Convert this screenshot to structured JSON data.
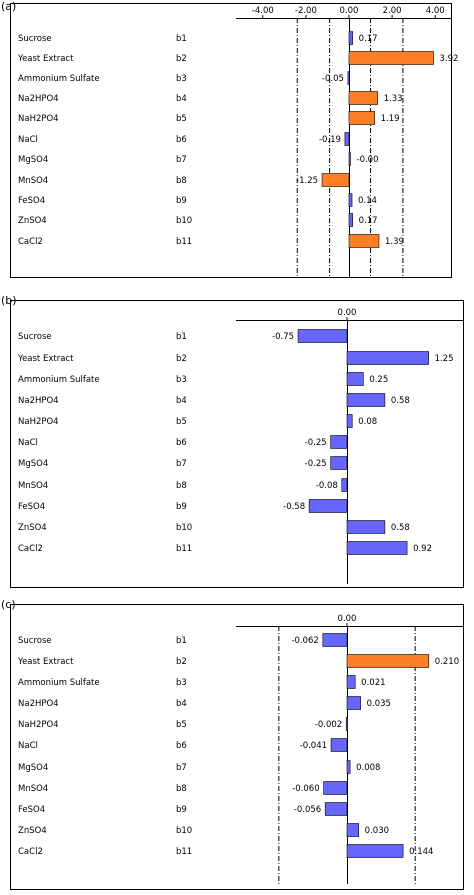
{
  "chart_data": [
    {
      "panel": "(a)",
      "type": "bar",
      "orientation": "horizontal",
      "categories": [
        "Sucrose",
        "Yeast Extract",
        "Ammonium Sulfate",
        "Na2HPO4",
        "NaH2PO4",
        "NaCl",
        "MgSO4",
        "MnSO4",
        "FeSO4",
        "ZnSO4",
        "CaCl2"
      ],
      "codes": [
        "b1",
        "b2",
        "b3",
        "b4",
        "b5",
        "b6",
        "b7",
        "b8",
        "b9",
        "b10",
        "b11"
      ],
      "values": [
        0.17,
        3.92,
        -0.05,
        1.33,
        1.19,
        -0.19,
        -0.0,
        -1.25,
        0.14,
        0.17,
        1.39
      ],
      "value_labels": [
        "0.17",
        "3.92",
        "-0.05",
        "1.33",
        "1.19",
        "-0.19",
        "-0.00",
        "-1.25",
        "0.14",
        "0.17",
        "1.39"
      ],
      "significant": [
        false,
        true,
        false,
        true,
        true,
        false,
        false,
        true,
        false,
        false,
        true
      ],
      "ticks": [
        "-4.00",
        "-2.00",
        "0.00",
        "2.00",
        "4.00"
      ],
      "tick_values": [
        -4,
        -2,
        0,
        2,
        4
      ],
      "xlim": [
        -4.5,
        4.5
      ],
      "reference_lines": [
        -2.4,
        -0.9,
        1.0,
        2.5
      ],
      "colors": {
        "significant": "#ff7f27",
        "normal": "#6666ff"
      }
    },
    {
      "panel": "(b)",
      "type": "bar",
      "orientation": "horizontal",
      "categories": [
        "Sucrose",
        "Yeast Extract",
        "Ammonium Sulfate",
        "Na2HPO4",
        "NaH2PO4",
        "NaCl",
        "MgSO4",
        "MnSO4",
        "FeSO4",
        "ZnSO4",
        "CaCl2"
      ],
      "codes": [
        "b1",
        "b2",
        "b3",
        "b4",
        "b5",
        "b6",
        "b7",
        "b8",
        "b9",
        "b10",
        "b11"
      ],
      "values": [
        -0.75,
        1.25,
        0.25,
        0.58,
        0.08,
        -0.25,
        -0.25,
        -0.08,
        -0.58,
        0.58,
        0.92
      ],
      "value_labels": [
        "-0.75",
        "1.25",
        "0.25",
        "0.58",
        "0.08",
        "-0.25",
        "-0.25",
        "-0.08",
        "-0.58",
        "0.58",
        "0.92"
      ],
      "significant": [
        false,
        false,
        false,
        false,
        false,
        false,
        false,
        false,
        false,
        false,
        false
      ],
      "ticks": [
        "0.00"
      ],
      "tick_values": [
        0
      ],
      "xlim": [
        -1.7,
        1.7
      ],
      "reference_lines": [],
      "colors": {
        "significant": "#ff7f27",
        "normal": "#6666ff"
      }
    },
    {
      "panel": "(c)",
      "type": "bar",
      "orientation": "horizontal",
      "categories": [
        "Sucrose",
        "Yeast Extract",
        "Ammonium Sulfate",
        "Na2HPO4",
        "NaH2PO4",
        "NaCl",
        "MgSO4",
        "MnSO4",
        "FeSO4",
        "ZnSO4",
        "CaCl2"
      ],
      "codes": [
        "b1",
        "b2",
        "b3",
        "b4",
        "b5",
        "b6",
        "b7",
        "b8",
        "b9",
        "b10",
        "b11"
      ],
      "values": [
        -0.062,
        0.21,
        0.021,
        0.035,
        -0.002,
        -0.041,
        0.008,
        -0.06,
        -0.056,
        0.03,
        0.144
      ],
      "value_labels": [
        "-0.062",
        "0.210",
        "0.021",
        "0.035",
        "-0.002",
        "-0.041",
        "0.008",
        "-0.060",
        "-0.056",
        "0.030",
        "0.144"
      ],
      "significant": [
        false,
        true,
        false,
        false,
        false,
        false,
        false,
        false,
        false,
        false,
        false
      ],
      "ticks": [
        "0.00"
      ],
      "tick_values": [
        0
      ],
      "xlim": [
        -0.285,
        0.285
      ],
      "reference_lines": [
        -0.175,
        0.175
      ],
      "colors": {
        "significant": "#ff7f27",
        "normal": "#6666ff"
      }
    }
  ]
}
